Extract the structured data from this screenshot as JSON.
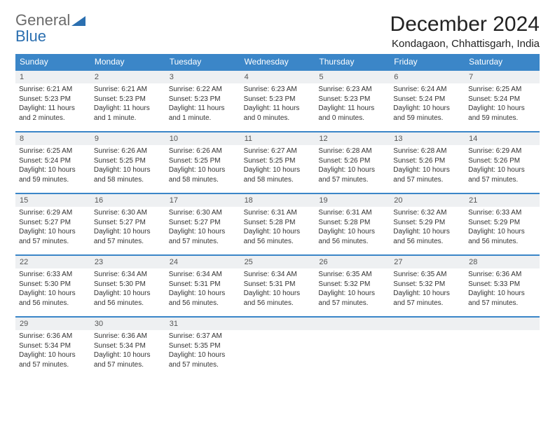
{
  "branding": {
    "word1": "General",
    "word2": "Blue",
    "gray_color": "#6b6b6b",
    "blue_color": "#2b6fb0",
    "shape_color": "#2b6fb0"
  },
  "header": {
    "month_title": "December 2024",
    "location": "Kondagaon, Chhattisgarh, India"
  },
  "styling": {
    "header_bg": "#3b86c8",
    "header_text": "#ffffff",
    "daynum_bg": "#eef0f2",
    "week_border": "#3b86c8",
    "body_font_size": 10,
    "weekday_font_size": 12
  },
  "weekdays": [
    "Sunday",
    "Monday",
    "Tuesday",
    "Wednesday",
    "Thursday",
    "Friday",
    "Saturday"
  ],
  "labels": {
    "sunrise_prefix": "Sunrise: ",
    "sunset_prefix": "Sunset: ",
    "daylight_prefix": "Daylight: "
  },
  "days": [
    {
      "n": 1,
      "sunrise": "6:21 AM",
      "sunset": "5:23 PM",
      "daylight": "11 hours and 2 minutes."
    },
    {
      "n": 2,
      "sunrise": "6:21 AM",
      "sunset": "5:23 PM",
      "daylight": "11 hours and 1 minute."
    },
    {
      "n": 3,
      "sunrise": "6:22 AM",
      "sunset": "5:23 PM",
      "daylight": "11 hours and 1 minute."
    },
    {
      "n": 4,
      "sunrise": "6:23 AM",
      "sunset": "5:23 PM",
      "daylight": "11 hours and 0 minutes."
    },
    {
      "n": 5,
      "sunrise": "6:23 AM",
      "sunset": "5:23 PM",
      "daylight": "11 hours and 0 minutes."
    },
    {
      "n": 6,
      "sunrise": "6:24 AM",
      "sunset": "5:24 PM",
      "daylight": "10 hours and 59 minutes."
    },
    {
      "n": 7,
      "sunrise": "6:25 AM",
      "sunset": "5:24 PM",
      "daylight": "10 hours and 59 minutes."
    },
    {
      "n": 8,
      "sunrise": "6:25 AM",
      "sunset": "5:24 PM",
      "daylight": "10 hours and 59 minutes."
    },
    {
      "n": 9,
      "sunrise": "6:26 AM",
      "sunset": "5:25 PM",
      "daylight": "10 hours and 58 minutes."
    },
    {
      "n": 10,
      "sunrise": "6:26 AM",
      "sunset": "5:25 PM",
      "daylight": "10 hours and 58 minutes."
    },
    {
      "n": 11,
      "sunrise": "6:27 AM",
      "sunset": "5:25 PM",
      "daylight": "10 hours and 58 minutes."
    },
    {
      "n": 12,
      "sunrise": "6:28 AM",
      "sunset": "5:26 PM",
      "daylight": "10 hours and 57 minutes."
    },
    {
      "n": 13,
      "sunrise": "6:28 AM",
      "sunset": "5:26 PM",
      "daylight": "10 hours and 57 minutes."
    },
    {
      "n": 14,
      "sunrise": "6:29 AM",
      "sunset": "5:26 PM",
      "daylight": "10 hours and 57 minutes."
    },
    {
      "n": 15,
      "sunrise": "6:29 AM",
      "sunset": "5:27 PM",
      "daylight": "10 hours and 57 minutes."
    },
    {
      "n": 16,
      "sunrise": "6:30 AM",
      "sunset": "5:27 PM",
      "daylight": "10 hours and 57 minutes."
    },
    {
      "n": 17,
      "sunrise": "6:30 AM",
      "sunset": "5:27 PM",
      "daylight": "10 hours and 57 minutes."
    },
    {
      "n": 18,
      "sunrise": "6:31 AM",
      "sunset": "5:28 PM",
      "daylight": "10 hours and 56 minutes."
    },
    {
      "n": 19,
      "sunrise": "6:31 AM",
      "sunset": "5:28 PM",
      "daylight": "10 hours and 56 minutes."
    },
    {
      "n": 20,
      "sunrise": "6:32 AM",
      "sunset": "5:29 PM",
      "daylight": "10 hours and 56 minutes."
    },
    {
      "n": 21,
      "sunrise": "6:33 AM",
      "sunset": "5:29 PM",
      "daylight": "10 hours and 56 minutes."
    },
    {
      "n": 22,
      "sunrise": "6:33 AM",
      "sunset": "5:30 PM",
      "daylight": "10 hours and 56 minutes."
    },
    {
      "n": 23,
      "sunrise": "6:34 AM",
      "sunset": "5:30 PM",
      "daylight": "10 hours and 56 minutes."
    },
    {
      "n": 24,
      "sunrise": "6:34 AM",
      "sunset": "5:31 PM",
      "daylight": "10 hours and 56 minutes."
    },
    {
      "n": 25,
      "sunrise": "6:34 AM",
      "sunset": "5:31 PM",
      "daylight": "10 hours and 56 minutes."
    },
    {
      "n": 26,
      "sunrise": "6:35 AM",
      "sunset": "5:32 PM",
      "daylight": "10 hours and 57 minutes."
    },
    {
      "n": 27,
      "sunrise": "6:35 AM",
      "sunset": "5:32 PM",
      "daylight": "10 hours and 57 minutes."
    },
    {
      "n": 28,
      "sunrise": "6:36 AM",
      "sunset": "5:33 PM",
      "daylight": "10 hours and 57 minutes."
    },
    {
      "n": 29,
      "sunrise": "6:36 AM",
      "sunset": "5:34 PM",
      "daylight": "10 hours and 57 minutes."
    },
    {
      "n": 30,
      "sunrise": "6:36 AM",
      "sunset": "5:34 PM",
      "daylight": "10 hours and 57 minutes."
    },
    {
      "n": 31,
      "sunrise": "6:37 AM",
      "sunset": "5:35 PM",
      "daylight": "10 hours and 57 minutes."
    }
  ],
  "grid": {
    "start_weekday": 0,
    "total_cells": 35
  }
}
